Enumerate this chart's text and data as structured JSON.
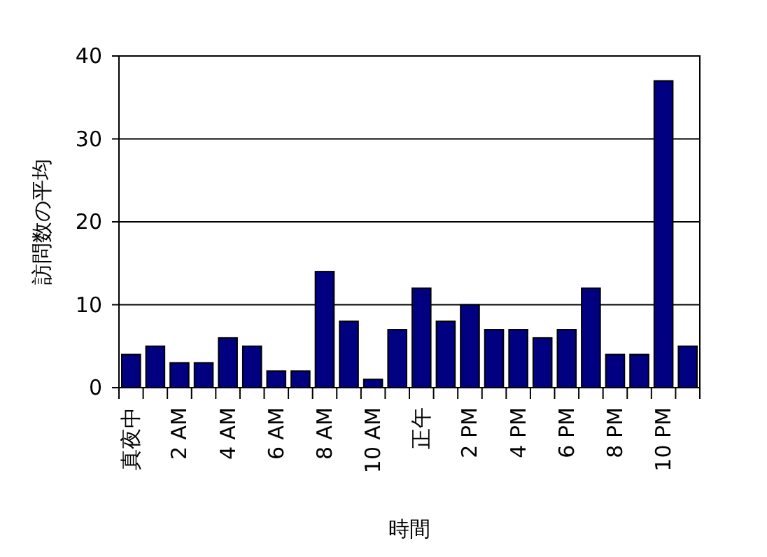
{
  "chart_data": {
    "type": "bar",
    "xlabel": "時間",
    "ylabel": "訪問数の平均",
    "categories": [
      "真夜中",
      null,
      "2 AM",
      null,
      "4 AM",
      null,
      "6 AM",
      null,
      "8 AM",
      null,
      "10 AM",
      null,
      "正午",
      null,
      "2 PM",
      null,
      "4 PM",
      null,
      "6 PM",
      null,
      "8 PM",
      null,
      "10 PM",
      null
    ],
    "values": [
      4,
      5,
      3,
      3,
      6,
      5,
      2,
      2,
      14,
      8,
      1,
      7,
      12,
      8,
      10,
      7,
      7,
      6,
      7,
      12,
      4,
      4,
      37,
      5
    ],
    "color": "#000080",
    "ylim": [
      0,
      40
    ],
    "yticks": [
      0,
      10,
      20,
      30,
      40
    ],
    "grid": "y"
  }
}
